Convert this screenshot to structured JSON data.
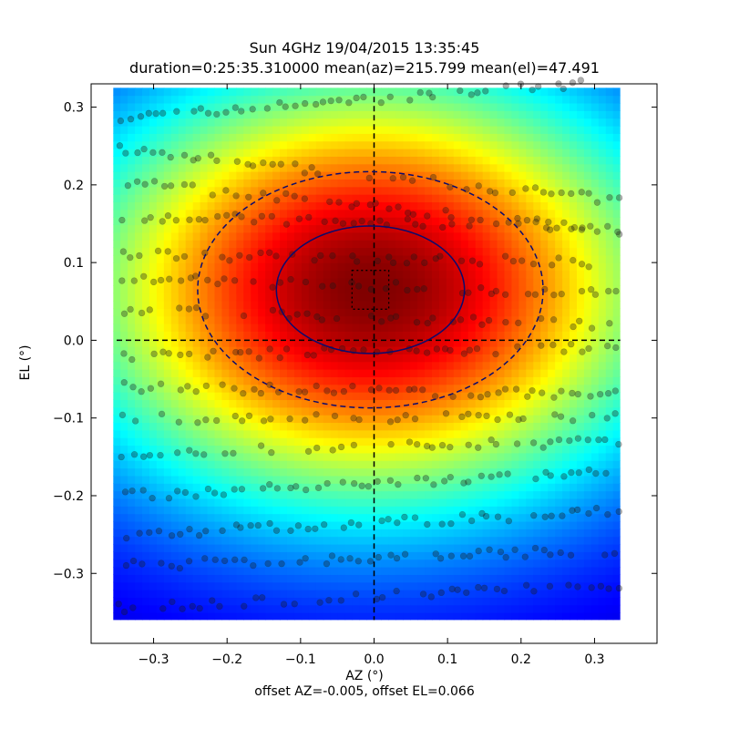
{
  "chart_data": {
    "type": "heatmap",
    "title": "Sun 4GHz 19/04/2015 13:35:45",
    "subtitle": "duration=0:25:35.310000 mean(az)=215.799 mean(el)=47.491",
    "xlabel": "AZ (°)",
    "ylabel": "EL (°)",
    "footer": "offset AZ=-0.005, offset EL=0.066",
    "xlim": [
      -0.385,
      0.385
    ],
    "ylim": [
      -0.39,
      0.33
    ],
    "xticks": [
      -0.3,
      -0.2,
      -0.1,
      0.0,
      0.1,
      0.2,
      0.3
    ],
    "xtick_labels": [
      "−0.3",
      "−0.2",
      "−0.1",
      "0.0",
      "0.1",
      "0.2",
      "0.3"
    ],
    "yticks": [
      -0.3,
      -0.2,
      -0.1,
      0.0,
      0.1,
      0.2,
      0.3
    ],
    "ytick_labels": [
      "−0.3",
      "−0.2",
      "−0.1",
      "0.0",
      "0.1",
      "0.2",
      "0.3"
    ],
    "heatmap_extent": {
      "x": [
        -0.355,
        0.335
      ],
      "y": [
        -0.36,
        0.325
      ]
    },
    "colormap": "jet",
    "beam_center": {
      "az": -0.005,
      "el": 0.066
    },
    "inner_contour": {
      "type": "solid",
      "center": [
        -0.005,
        0.065
      ],
      "radii": [
        0.128,
        0.082
      ]
    },
    "outer_contour": {
      "type": "dashed",
      "center": [
        -0.005,
        0.065
      ],
      "radii": [
        0.235,
        0.152
      ]
    },
    "center_box": {
      "x": [
        -0.03,
        0.02
      ],
      "y": [
        0.04,
        0.09
      ],
      "style": "dotted"
    },
    "crosshair": {
      "x": 0.0,
      "y": 0.0,
      "style": "dashed"
    },
    "scan_points": {
      "marker": "circle",
      "color": "#1a1a1a",
      "alpha": 0.35,
      "scan_lines": [
        {
          "el_start": 0.285,
          "el_end": 0.33,
          "az": [
            -0.355,
            0.285
          ]
        },
        {
          "el_start": 0.245,
          "el_end": 0.18,
          "az": [
            -0.35,
            0.33
          ]
        },
        {
          "el_start": 0.205,
          "el_end": 0.14,
          "az": [
            -0.35,
            0.335
          ]
        },
        {
          "el_start": 0.16,
          "el_end": 0.145,
          "az": [
            -0.34,
            0.33
          ]
        },
        {
          "el_start": 0.11,
          "el_end": 0.1,
          "az": [
            -0.345,
            0.33
          ]
        },
        {
          "el_start": 0.08,
          "el_end": 0.06,
          "az": [
            -0.34,
            0.33
          ]
        },
        {
          "el_start": 0.04,
          "el_end": 0.02,
          "az": [
            -0.34,
            0.33
          ]
        },
        {
          "el_start": -0.02,
          "el_end": -0.01,
          "az": [
            -0.34,
            0.33
          ]
        },
        {
          "el_start": -0.06,
          "el_end": -0.07,
          "az": [
            -0.34,
            0.33
          ]
        },
        {
          "el_start": -0.1,
          "el_end": -0.1,
          "az": [
            -0.34,
            0.33
          ]
        },
        {
          "el_start": -0.145,
          "el_end": -0.13,
          "az": [
            -0.34,
            0.33
          ]
        },
        {
          "el_start": -0.2,
          "el_end": -0.17,
          "az": [
            -0.34,
            0.33
          ]
        },
        {
          "el_start": -0.25,
          "el_end": -0.22,
          "az": [
            -0.34,
            0.33
          ]
        },
        {
          "el_start": -0.29,
          "el_end": -0.27,
          "az": [
            -0.34,
            0.33
          ]
        },
        {
          "el_start": -0.345,
          "el_end": -0.315,
          "az": [
            -0.35,
            0.33
          ]
        }
      ]
    }
  }
}
